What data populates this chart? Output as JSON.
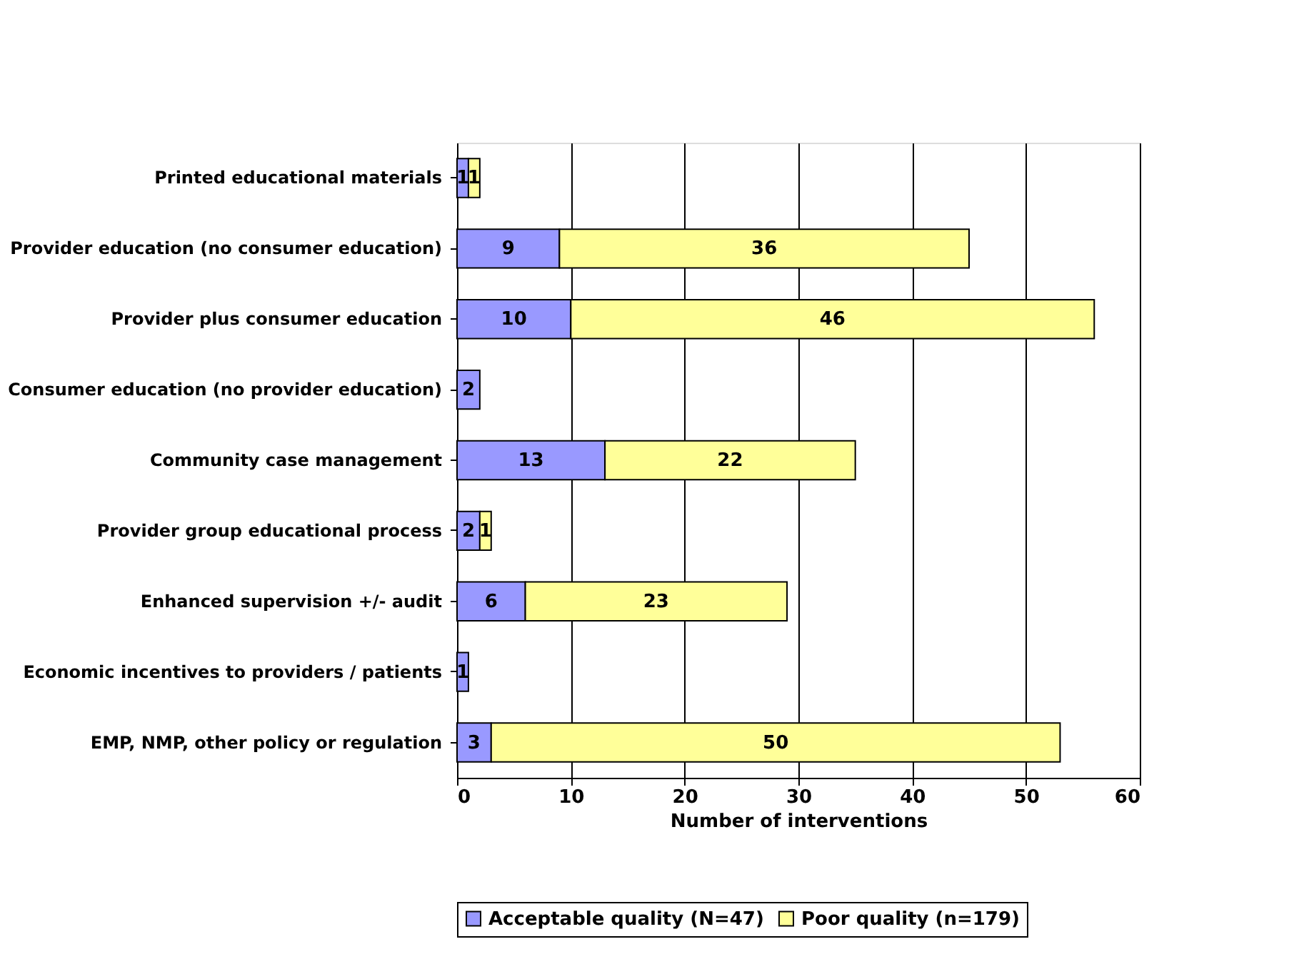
{
  "chart_data": {
    "type": "bar",
    "orientation": "horizontal",
    "stacked": true,
    "xlabel": "Number of interventions",
    "categories": [
      "Printed educational materials",
      "Provider education (no consumer education)",
      "Provider plus consumer education",
      "Consumer education (no provider education)",
      "Community case management ",
      "Provider group educational process",
      "Enhanced supervision +/- audit",
      "Economic incentives to providers / patients",
      "EMP, NMP, other policy or regulation"
    ],
    "series": [
      {
        "name": "Acceptable quality (N=47)",
        "color": "#9999ff",
        "values": [
          1,
          9,
          10,
          2,
          13,
          2,
          6,
          1,
          3
        ]
      },
      {
        "name": "Poor quality (n=179)",
        "color": "#ffff99",
        "values": [
          1,
          36,
          46,
          null,
          22,
          1,
          23,
          null,
          50
        ]
      }
    ],
    "xlim": [
      0,
      60
    ],
    "xticks": [
      0,
      10,
      20,
      30,
      40,
      50,
      60
    ],
    "grid": "x",
    "legend": "bottom",
    "data_labels": true
  }
}
